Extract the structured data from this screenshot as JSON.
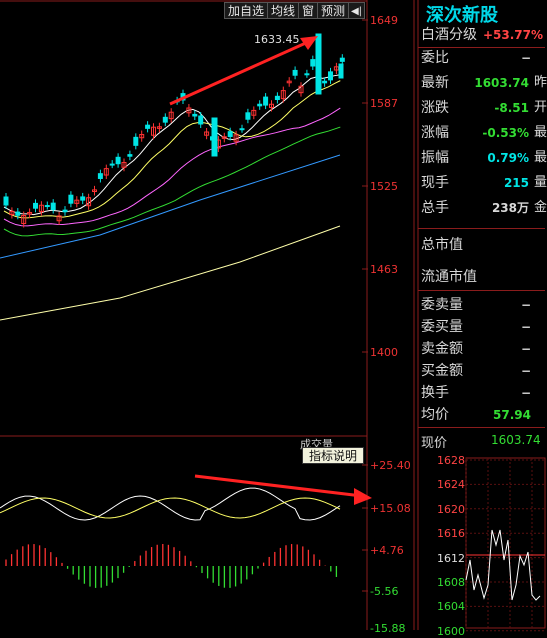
{
  "toolbar": {
    "buttons": [
      "加自选",
      "均线",
      "窗",
      "预测"
    ],
    "arrow_label": "◀|"
  },
  "main_chart": {
    "peak_label": "1633.45",
    "y_ticks": [
      "1649",
      "1587",
      "1525",
      "1463",
      "1400"
    ],
    "colors": {
      "up": "#ff3333",
      "down": "#00e5e5",
      "ma5": "#ffffff",
      "ma10": "#ffff66",
      "ma20": "#ff66ff",
      "ma30": "#33dd33",
      "ma60": "#3399ff",
      "ma120": "#ffffaa"
    }
  },
  "indicator": {
    "label_partial": "成交量",
    "tooltip": "指标说明",
    "y_ticks": [
      "+25.40",
      "+15.08",
      "+4.76",
      "-5.56",
      "-15.88"
    ]
  },
  "quote": {
    "title": "深次新股",
    "index_name": "白酒分级",
    "index_change": "+53.77%",
    "rows": [
      {
        "k": "委比",
        "v": "−",
        "color": "#d8d8d8"
      },
      {
        "k": "最新",
        "v": "1603.74",
        "color": "#33dd33",
        "suffix": "昨"
      },
      {
        "k": "涨跌",
        "v": "-8.51",
        "color": "#33dd33",
        "suffix": "开"
      },
      {
        "k": "涨幅",
        "v": "-0.53%",
        "color": "#33dd33",
        "suffix": "最"
      },
      {
        "k": "振幅",
        "v": "0.79%",
        "color": "#00e5e5",
        "suffix": "最"
      },
      {
        "k": "现手",
        "v": "215",
        "color": "#00e5e5",
        "suffix": "量"
      },
      {
        "k": "总手",
        "v": "238万",
        "color": "#d8d8d8",
        "suffix": "金"
      }
    ],
    "mkt_cap": "总市值",
    "float_cap": "流通市值",
    "rows2": [
      {
        "k": "委卖量",
        "v": "−"
      },
      {
        "k": "委买量",
        "v": "−"
      },
      {
        "k": "卖金额",
        "v": "−"
      },
      {
        "k": "买金额",
        "v": "−"
      },
      {
        "k": "换手",
        "v": "−"
      },
      {
        "k": "均价",
        "v": "57.94"
      }
    ],
    "current_label": "现价",
    "current_value": "1603.74"
  },
  "mini_chart": {
    "y_ticks": [
      "1628",
      "1624",
      "1620",
      "1616",
      "1612",
      "1608",
      "1604",
      "1600"
    ]
  }
}
